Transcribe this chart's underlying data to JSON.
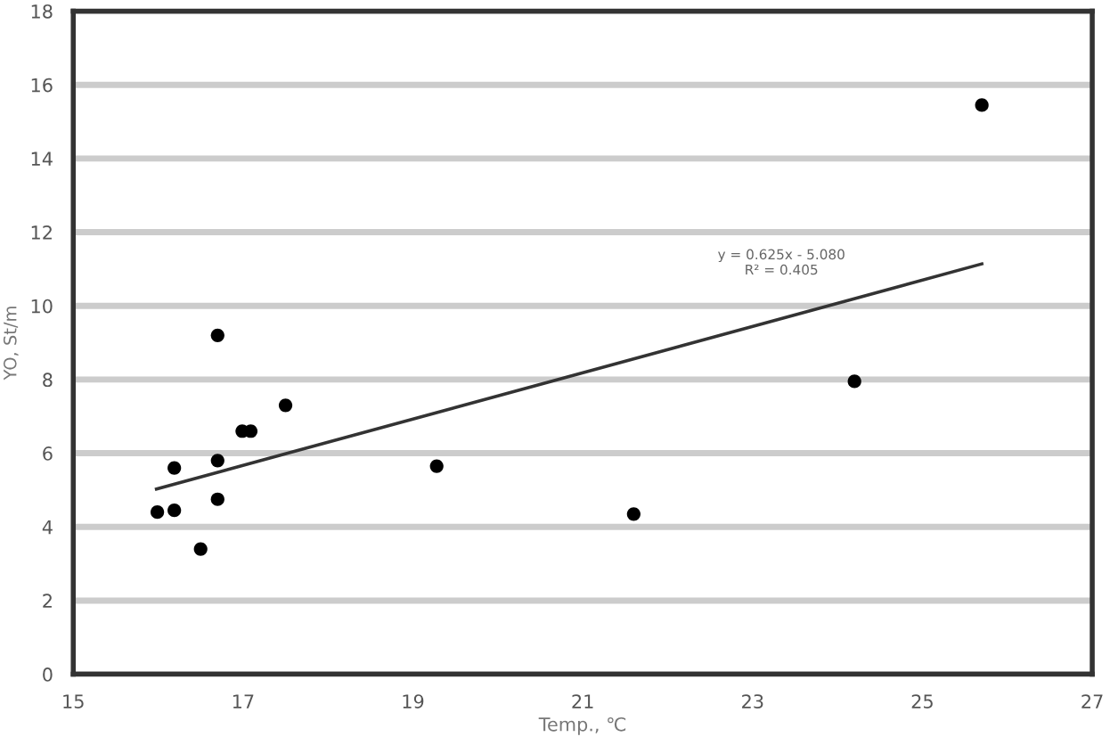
{
  "chart_data": {
    "type": "scatter",
    "xlabel": "Temp., ℃",
    "ylabel": "YO, St/m",
    "xlim": [
      15,
      27
    ],
    "xticks": [
      15,
      17,
      19,
      21,
      23,
      25,
      27
    ],
    "ylim": [
      0,
      18
    ],
    "yticks": [
      0,
      2,
      4,
      6,
      8,
      10,
      12,
      14,
      16,
      18
    ],
    "grid": "y",
    "marker": "circle",
    "series": [
      {
        "color": "#000000",
        "x": [
          15.99,
          16.19,
          16.19,
          16.5,
          16.7,
          16.7,
          16.7,
          16.99,
          17.09,
          17.5,
          19.28,
          21.6,
          24.2,
          25.7
        ],
        "values": [
          4.4,
          5.6,
          4.45,
          3.4,
          9.2,
          5.8,
          4.75,
          6.6,
          6.6,
          7.3,
          5.65,
          4.35,
          7.95,
          15.45
        ]
      },
      {
        "type": "line",
        "marker": "none",
        "color": "#333333",
        "x": [
          15.98,
          25.7
        ],
        "values": [
          5.03,
          11.14
        ]
      }
    ],
    "annotations": [
      "y = 0.625x - 5.080\nR² = 0.405"
    ]
  }
}
